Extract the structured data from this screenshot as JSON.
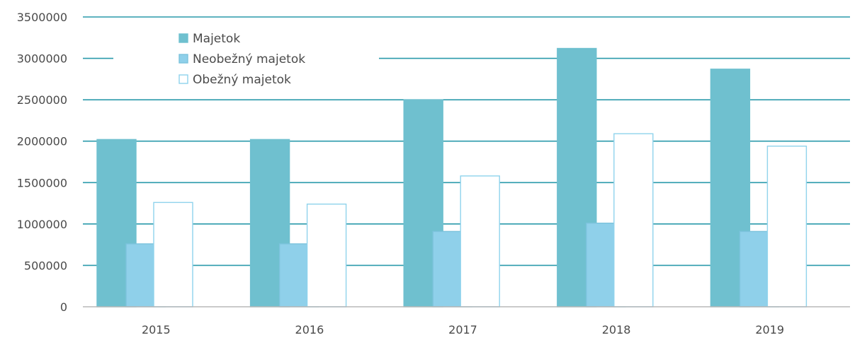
{
  "chart_data": {
    "type": "bar",
    "title": "",
    "xlabel": "",
    "ylabel": "",
    "categories": [
      "2015",
      "2016",
      "2017",
      "2018",
      "2019"
    ],
    "ylim": [
      0,
      3500000
    ],
    "yticks": [
      0,
      500000,
      1000000,
      1500000,
      2000000,
      2500000,
      3000000,
      3500000
    ],
    "ytick_labels": [
      "0",
      "500000",
      "1000000",
      "1500000",
      "2000000",
      "2500000",
      "3000000",
      "3500000"
    ],
    "grid": true,
    "legend_position": "top-left",
    "series": [
      {
        "name": "Majetok",
        "values": [
          2020000,
          2020000,
          2500000,
          3120000,
          2870000
        ],
        "color": "#6fc0cf",
        "edge": "#6fc0cf"
      },
      {
        "name": "Neobežný majetok",
        "values": [
          760000,
          760000,
          910000,
          1010000,
          910000
        ],
        "color": "#8fd0ea",
        "edge": "#7cc3dd"
      },
      {
        "name": "Obežný majetok",
        "values": [
          1260000,
          1240000,
          1580000,
          2090000,
          1940000
        ],
        "color": "#ffffff",
        "edge": "#8fd3ec"
      }
    ],
    "colors": {
      "grid": "#2a9aab",
      "axis": "#b8b8b8"
    }
  }
}
